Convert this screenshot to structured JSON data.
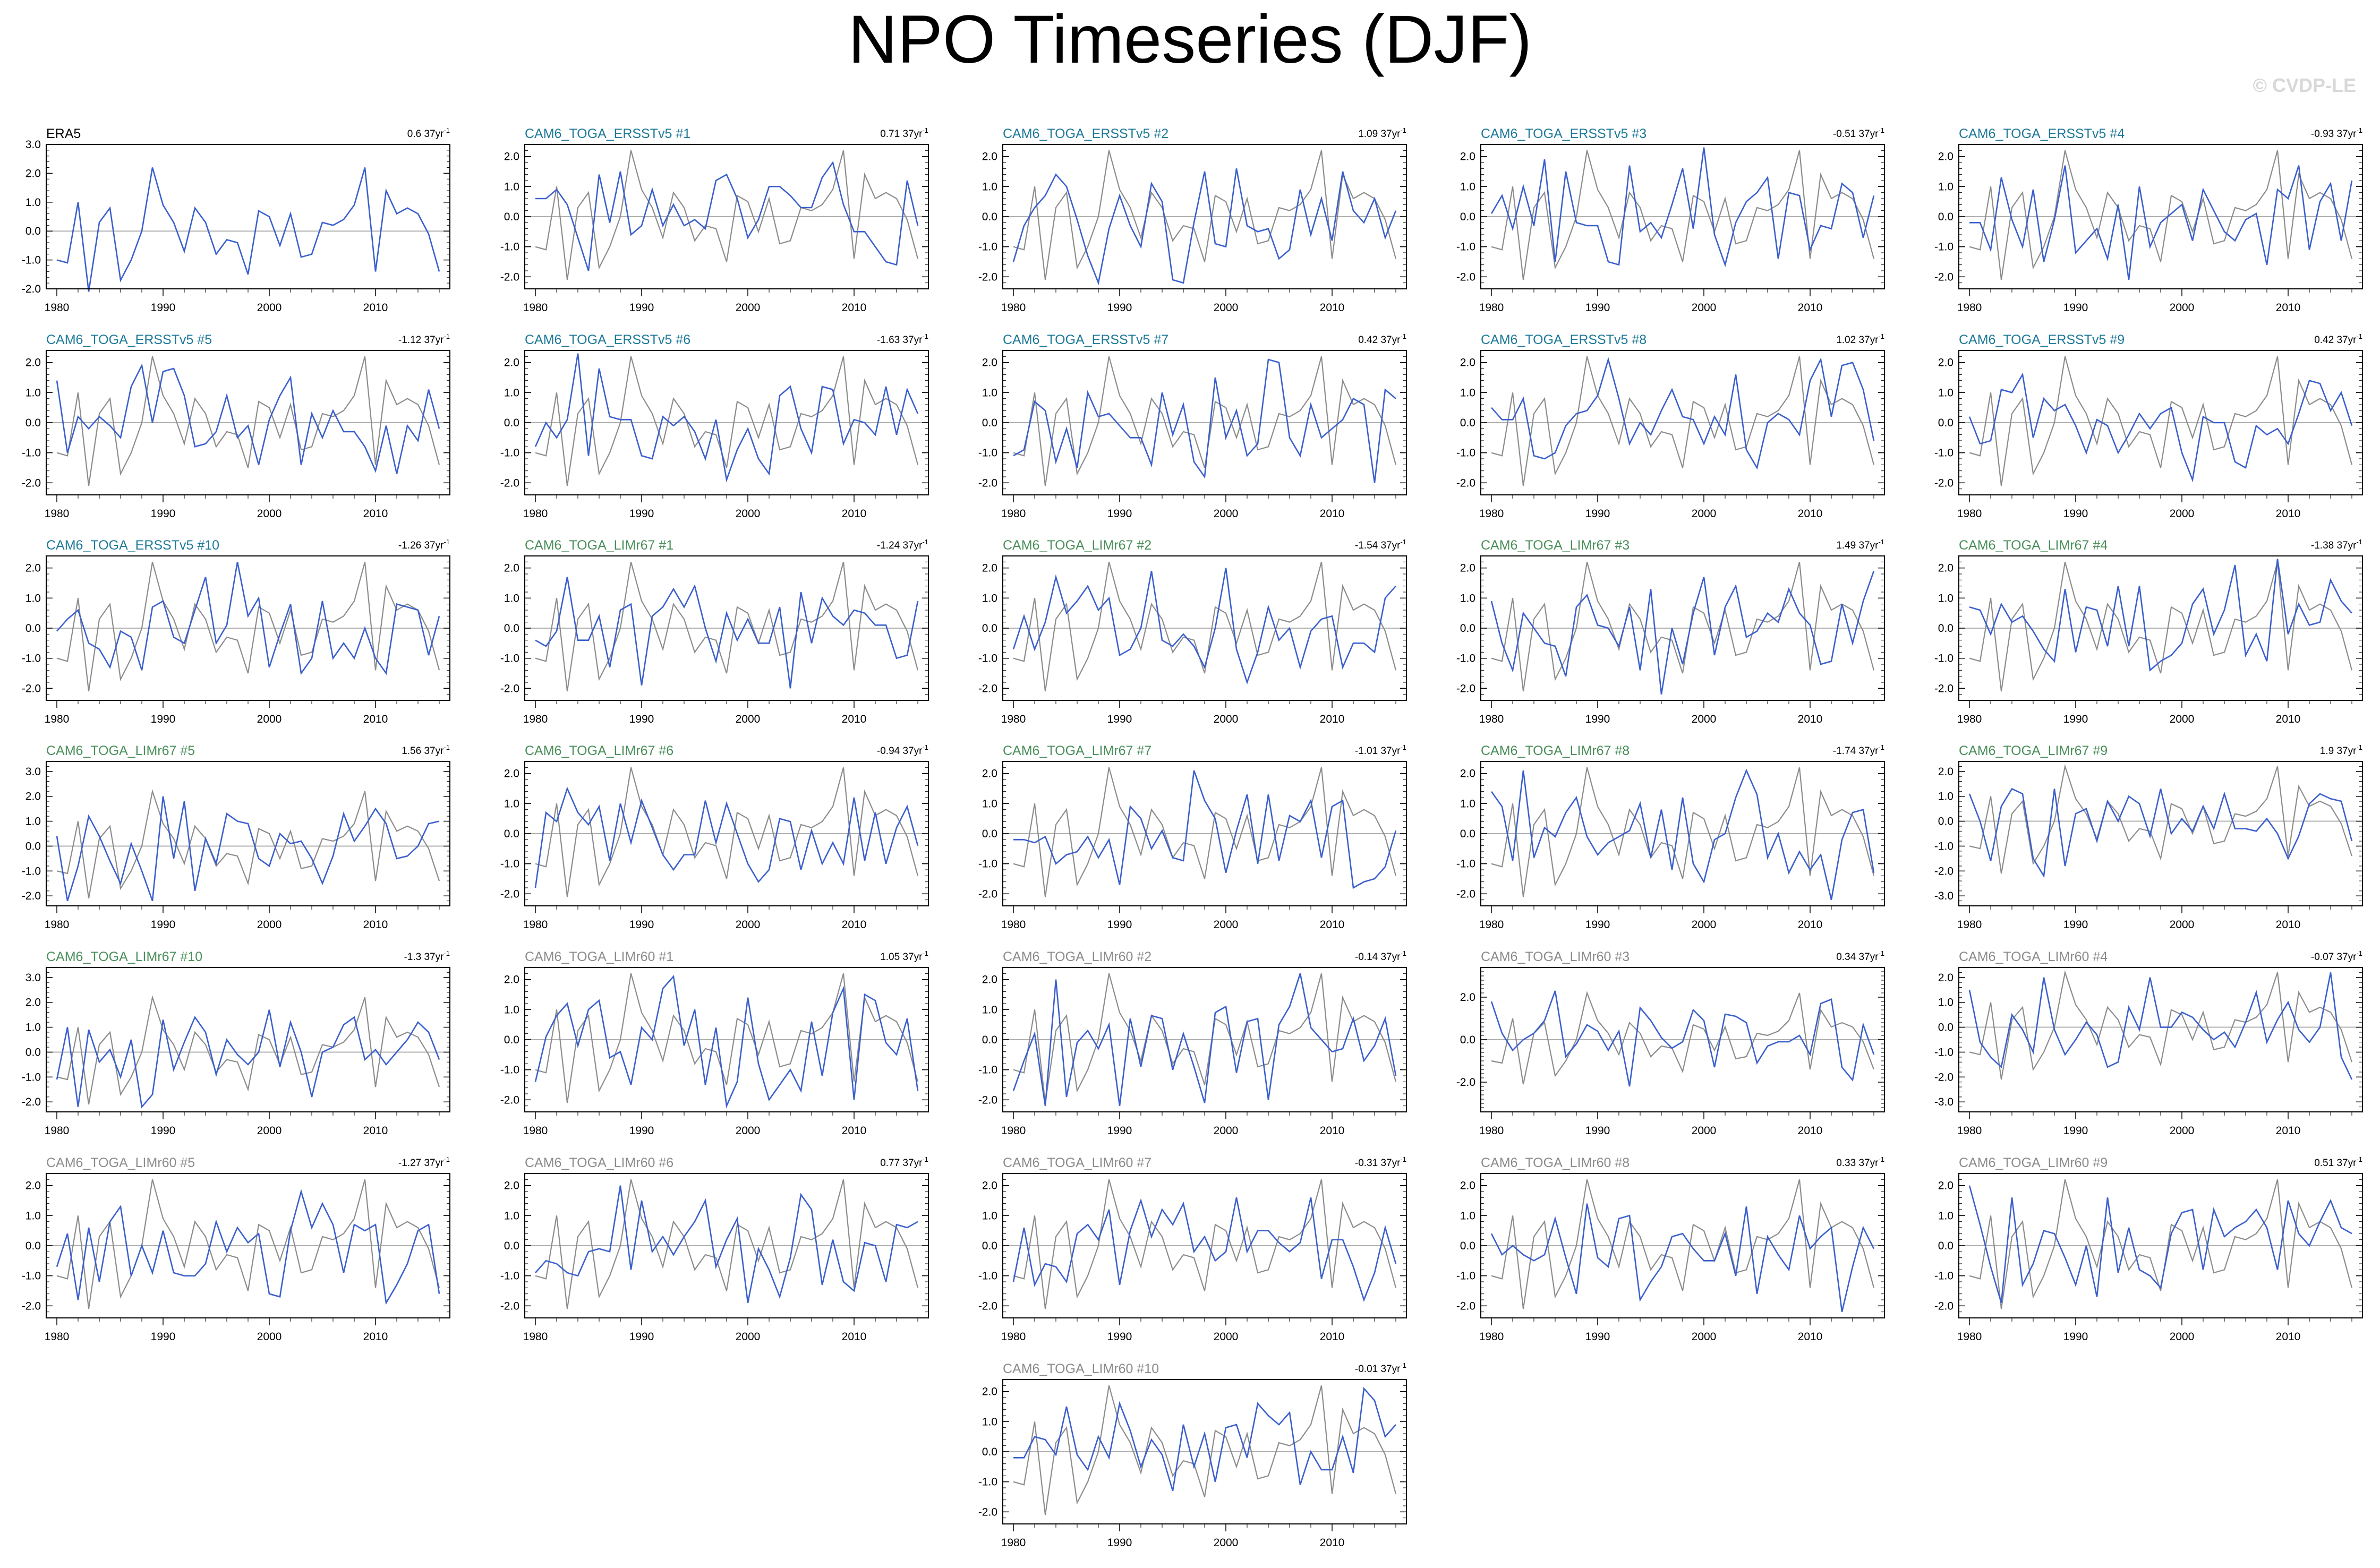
{
  "figure": {
    "title": "NPO Timeseries (DJF)",
    "watermark": "© CVDP-LE",
    "colors": {
      "model": "#3a5fcd",
      "observed": "#8c8c8c",
      "title_obs": "#000000",
      "title_ersst": "#1f7a99",
      "title_limr67": "#4a8f5a",
      "title_limr60": "#8c8c8c"
    },
    "x_range": [
      1979,
      2017
    ],
    "x_ticks": [
      1980,
      1990,
      2000,
      2010
    ]
  },
  "chart_data": [
    {
      "type": "line",
      "title": "ERA5",
      "trend": "0.6 37yr",
      "trend_unit_superscript": "-1",
      "title_color": "#000000",
      "ylim": [
        -2.0,
        3.0
      ],
      "y_ticks": [
        -2.0,
        -1.0,
        0.0,
        1.0,
        2.0,
        3.0
      ],
      "x": [
        1980,
        1981,
        1982,
        1983,
        1984,
        1985,
        1986,
        1987,
        1988,
        1989,
        1990,
        1991,
        1992,
        1993,
        1994,
        1995,
        1996,
        1997,
        1998,
        1999,
        2000,
        2001,
        2002,
        2003,
        2004,
        2005,
        2006,
        2007,
        2008,
        2009,
        2010,
        2011,
        2012,
        2013,
        2014,
        2015,
        2016
      ],
      "series": [
        {
          "values": [
            -1.0,
            -1.1,
            1.0,
            -2.1,
            0.3,
            0.8,
            -1.7,
            -1.0,
            0.0,
            2.2,
            0.9,
            0.3,
            -0.7,
            0.8,
            0.3,
            -0.8,
            -0.3,
            -0.4,
            -1.5,
            0.7,
            0.5,
            -0.5,
            0.6,
            -0.9,
            -0.8,
            0.3,
            0.2,
            0.4,
            0.9,
            2.2,
            -1.4,
            1.4,
            0.6,
            0.8,
            0.6,
            -0.1,
            -1.4
          ]
        }
      ]
    },
    {
      "type": "line",
      "title": "CAM6_TOGA_ERSSTv5 #1",
      "trend": "0.71 37yr",
      "trend_unit_superscript": "-1",
      "title_color": "#1f7a99",
      "ylim": [
        -2.4,
        2.4
      ],
      "y_ticks": [
        -2.0,
        -1.0,
        0.0,
        1.0,
        2.0
      ]
    },
    {
      "type": "line",
      "title": "CAM6_TOGA_ERSSTv5 #2",
      "trend": "1.09 37yr",
      "trend_unit_superscript": "-1",
      "title_color": "#1f7a99",
      "ylim": [
        -2.4,
        2.4
      ],
      "y_ticks": [
        -2.0,
        -1.0,
        0.0,
        1.0,
        2.0
      ]
    },
    {
      "type": "line",
      "title": "CAM6_TOGA_ERSSTv5 #3",
      "trend": "-0.51 37yr",
      "trend_unit_superscript": "-1",
      "title_color": "#1f7a99",
      "ylim": [
        -2.4,
        2.4
      ],
      "y_ticks": [
        -2.0,
        -1.0,
        0.0,
        1.0,
        2.0
      ]
    },
    {
      "type": "line",
      "title": "CAM6_TOGA_ERSSTv5 #4",
      "trend": "-0.93 37yr",
      "trend_unit_superscript": "-1",
      "title_color": "#1f7a99",
      "ylim": [
        -2.4,
        2.4
      ],
      "y_ticks": [
        -2.0,
        -1.0,
        0.0,
        1.0,
        2.0
      ]
    },
    {
      "type": "line",
      "title": "CAM6_TOGA_ERSSTv5 #5",
      "trend": "-1.12 37yr",
      "trend_unit_superscript": "-1",
      "title_color": "#1f7a99",
      "ylim": [
        -2.4,
        2.4
      ],
      "y_ticks": [
        -2.0,
        -1.0,
        0.0,
        1.0,
        2.0
      ]
    },
    {
      "type": "line",
      "title": "CAM6_TOGA_ERSSTv5 #6",
      "trend": "-1.63 37yr",
      "trend_unit_superscript": "-1",
      "title_color": "#1f7a99",
      "ylim": [
        -2.4,
        2.4
      ],
      "y_ticks": [
        -2.0,
        -1.0,
        0.0,
        1.0,
        2.0
      ]
    },
    {
      "type": "line",
      "title": "CAM6_TOGA_ERSSTv5 #7",
      "trend": "0.42 37yr",
      "trend_unit_superscript": "-1",
      "title_color": "#1f7a99",
      "ylim": [
        -2.4,
        2.4
      ],
      "y_ticks": [
        -2.0,
        -1.0,
        0.0,
        1.0,
        2.0
      ]
    },
    {
      "type": "line",
      "title": "CAM6_TOGA_ERSSTv5 #8",
      "trend": "1.02 37yr",
      "trend_unit_superscript": "-1",
      "title_color": "#1f7a99",
      "ylim": [
        -2.4,
        2.4
      ],
      "y_ticks": [
        -2.0,
        -1.0,
        0.0,
        1.0,
        2.0
      ]
    },
    {
      "type": "line",
      "title": "CAM6_TOGA_ERSSTv5 #9",
      "trend": "0.42 37yr",
      "trend_unit_superscript": "-1",
      "title_color": "#1f7a99",
      "ylim": [
        -2.4,
        2.4
      ],
      "y_ticks": [
        -2.0,
        -1.0,
        0.0,
        1.0,
        2.0
      ]
    },
    {
      "type": "line",
      "title": "CAM6_TOGA_ERSSTv5 #10",
      "trend": "-1.26 37yr",
      "trend_unit_superscript": "-1",
      "title_color": "#1f7a99",
      "ylim": [
        -2.4,
        2.4
      ],
      "y_ticks": [
        -2.0,
        -1.0,
        0.0,
        1.0,
        2.0
      ]
    },
    {
      "type": "line",
      "title": "CAM6_TOGA_LIMr67 #1",
      "trend": "-1.24 37yr",
      "trend_unit_superscript": "-1",
      "title_color": "#4a8f5a",
      "ylim": [
        -2.4,
        2.4
      ],
      "y_ticks": [
        -2.0,
        -1.0,
        0.0,
        1.0,
        2.0
      ]
    },
    {
      "type": "line",
      "title": "CAM6_TOGA_LIMr67 #2",
      "trend": "-1.54 37yr",
      "trend_unit_superscript": "-1",
      "title_color": "#4a8f5a",
      "ylim": [
        -2.4,
        2.4
      ],
      "y_ticks": [
        -2.0,
        -1.0,
        0.0,
        1.0,
        2.0
      ]
    },
    {
      "type": "line",
      "title": "CAM6_TOGA_LIMr67 #3",
      "trend": "1.49 37yr",
      "trend_unit_superscript": "-1",
      "title_color": "#4a8f5a",
      "ylim": [
        -2.4,
        2.4
      ],
      "y_ticks": [
        -2.0,
        -1.0,
        0.0,
        1.0,
        2.0
      ]
    },
    {
      "type": "line",
      "title": "CAM6_TOGA_LIMr67 #4",
      "trend": "-1.38 37yr",
      "trend_unit_superscript": "-1",
      "title_color": "#4a8f5a",
      "ylim": [
        -2.4,
        2.4
      ],
      "y_ticks": [
        -2.0,
        -1.0,
        0.0,
        1.0,
        2.0
      ]
    },
    {
      "type": "line",
      "title": "CAM6_TOGA_LIMr67 #5",
      "trend": "1.56 37yr",
      "trend_unit_superscript": "-1",
      "title_color": "#4a8f5a",
      "ylim": [
        -2.4,
        3.4
      ],
      "y_ticks": [
        -2.0,
        -1.0,
        0.0,
        1.0,
        2.0,
        3.0
      ]
    },
    {
      "type": "line",
      "title": "CAM6_TOGA_LIMr67 #6",
      "trend": "-0.94 37yr",
      "trend_unit_superscript": "-1",
      "title_color": "#4a8f5a",
      "ylim": [
        -2.4,
        2.4
      ],
      "y_ticks": [
        -2.0,
        -1.0,
        0.0,
        1.0,
        2.0
      ]
    },
    {
      "type": "line",
      "title": "CAM6_TOGA_LIMr67 #7",
      "trend": "-1.01 37yr",
      "trend_unit_superscript": "-1",
      "title_color": "#4a8f5a",
      "ylim": [
        -2.4,
        2.4
      ],
      "y_ticks": [
        -2.0,
        -1.0,
        0.0,
        1.0,
        2.0
      ]
    },
    {
      "type": "line",
      "title": "CAM6_TOGA_LIMr67 #8",
      "trend": "-1.74 37yr",
      "trend_unit_superscript": "-1",
      "title_color": "#4a8f5a",
      "ylim": [
        -2.4,
        2.4
      ],
      "y_ticks": [
        -2.0,
        -1.0,
        0.0,
        1.0,
        2.0
      ]
    },
    {
      "type": "line",
      "title": "CAM6_TOGA_LIMr67 #9",
      "trend": "1.9 37yr",
      "trend_unit_superscript": "-1",
      "title_color": "#4a8f5a",
      "ylim": [
        -3.4,
        2.4
      ],
      "y_ticks": [
        -3.0,
        -2.0,
        -1.0,
        0.0,
        1.0,
        2.0
      ]
    },
    {
      "type": "line",
      "title": "CAM6_TOGA_LIMr67 #10",
      "trend": "-1.3 37yr",
      "trend_unit_superscript": "-1",
      "title_color": "#4a8f5a",
      "ylim": [
        -2.4,
        3.4
      ],
      "y_ticks": [
        -2.0,
        -1.0,
        0.0,
        1.0,
        2.0,
        3.0
      ]
    },
    {
      "type": "line",
      "title": "CAM6_TOGA_LIMr60 #1",
      "trend": "1.05 37yr",
      "trend_unit_superscript": "-1",
      "title_color": "#8c8c8c",
      "ylim": [
        -2.4,
        2.4
      ],
      "y_ticks": [
        -2.0,
        -1.0,
        0.0,
        1.0,
        2.0
      ]
    },
    {
      "type": "line",
      "title": "CAM6_TOGA_LIMr60 #2",
      "trend": "-0.14 37yr",
      "trend_unit_superscript": "-1",
      "title_color": "#8c8c8c",
      "ylim": [
        -2.4,
        2.4
      ],
      "y_ticks": [
        -2.0,
        -1.0,
        0.0,
        1.0,
        2.0
      ]
    },
    {
      "type": "line",
      "title": "CAM6_TOGA_LIMr60 #3",
      "trend": "0.34 37yr",
      "trend_unit_superscript": "-1",
      "title_color": "#8c8c8c",
      "ylim": [
        -3.4,
        3.4
      ],
      "y_ticks": [
        -2.0,
        0.0,
        2.0
      ]
    },
    {
      "type": "line",
      "title": "CAM6_TOGA_LIMr60 #4",
      "trend": "-0.07 37yr",
      "trend_unit_superscript": "-1",
      "title_color": "#8c8c8c",
      "ylim": [
        -3.4,
        2.4
      ],
      "y_ticks": [
        -3.0,
        -2.0,
        -1.0,
        0.0,
        1.0,
        2.0
      ]
    },
    {
      "type": "line",
      "title": "CAM6_TOGA_LIMr60 #5",
      "trend": "-1.27 37yr",
      "trend_unit_superscript": "-1",
      "title_color": "#8c8c8c",
      "ylim": [
        -2.4,
        2.4
      ],
      "y_ticks": [
        -2.0,
        -1.0,
        0.0,
        1.0,
        2.0
      ]
    },
    {
      "type": "line",
      "title": "CAM6_TOGA_LIMr60 #6",
      "trend": "0.77 37yr",
      "trend_unit_superscript": "-1",
      "title_color": "#8c8c8c",
      "ylim": [
        -2.4,
        2.4
      ],
      "y_ticks": [
        -2.0,
        -1.0,
        0.0,
        1.0,
        2.0
      ]
    },
    {
      "type": "line",
      "title": "CAM6_TOGA_LIMr60 #7",
      "trend": "-0.31 37yr",
      "trend_unit_superscript": "-1",
      "title_color": "#8c8c8c",
      "ylim": [
        -2.4,
        2.4
      ],
      "y_ticks": [
        -2.0,
        -1.0,
        0.0,
        1.0,
        2.0
      ]
    },
    {
      "type": "line",
      "title": "CAM6_TOGA_LIMr60 #8",
      "trend": "0.33 37yr",
      "trend_unit_superscript": "-1",
      "title_color": "#8c8c8c",
      "ylim": [
        -2.4,
        2.4
      ],
      "y_ticks": [
        -2.0,
        -1.0,
        0.0,
        1.0,
        2.0
      ]
    },
    {
      "type": "line",
      "title": "CAM6_TOGA_LIMr60 #9",
      "trend": "0.51 37yr",
      "trend_unit_superscript": "-1",
      "title_color": "#8c8c8c",
      "ylim": [
        -2.4,
        2.4
      ],
      "y_ticks": [
        -2.0,
        -1.0,
        0.0,
        1.0,
        2.0
      ]
    },
    {
      "type": "line",
      "title": "CAM6_TOGA_LIMr60 #10",
      "trend": "-0.01 37yr",
      "trend_unit_superscript": "-1",
      "title_color": "#8c8c8c",
      "ylim": [
        -2.4,
        2.4
      ],
      "y_ticks": [
        -2.0,
        -1.0,
        0.0,
        1.0,
        2.0
      ]
    }
  ]
}
